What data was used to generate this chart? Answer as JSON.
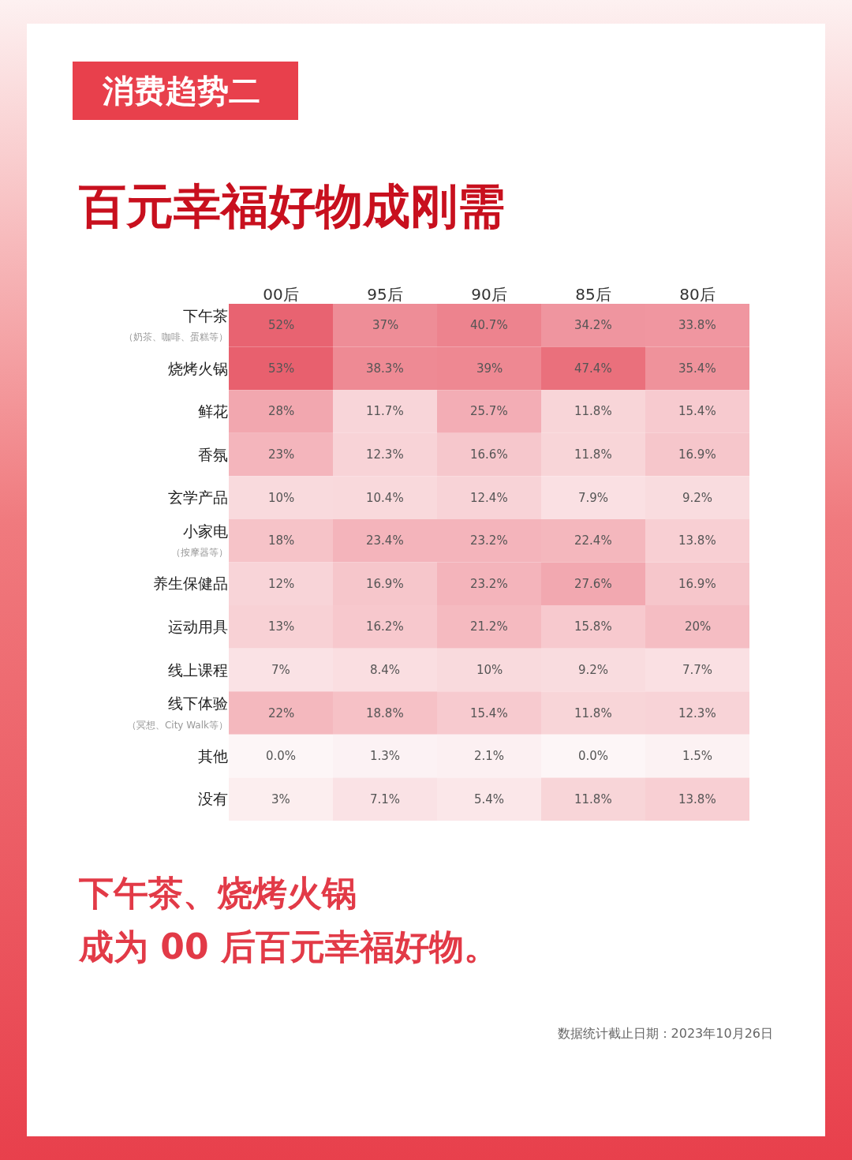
{
  "chart_data": {
    "type": "heatmap",
    "subtitle": "消费趋势二",
    "title": "百元幸福好物成刚需",
    "categories": [
      "00后",
      "95后",
      "90后",
      "85后",
      "80后"
    ],
    "y_categories": [
      "下午茶（奶茶、咖啡、蛋糕等）",
      "烧烤火锅",
      "鲜花",
      "香氛",
      "玄学产品",
      "小家电（按摩器等）",
      "养生保健品",
      "运动用具",
      "线上课程",
      "线下体验（冥想、City Walk等）",
      "其他",
      "没有"
    ],
    "cells": [
      [
        52,
        37,
        40.7,
        34.2,
        33.8
      ],
      [
        53,
        38.3,
        39,
        47.4,
        35.4
      ],
      [
        28,
        11.7,
        25.7,
        11.8,
        15.4
      ],
      [
        23,
        12.3,
        16.6,
        11.8,
        16.9
      ],
      [
        10,
        10.4,
        12.4,
        7.9,
        9.2
      ],
      [
        18,
        23.4,
        23.2,
        22.4,
        13.8
      ],
      [
        12,
        16.9,
        23.2,
        27.6,
        16.9
      ],
      [
        13,
        16.2,
        21.2,
        15.8,
        20
      ],
      [
        7,
        8.4,
        10,
        9.2,
        7.7
      ],
      [
        22,
        18.8,
        15.4,
        11.8,
        12.3
      ],
      [
        0,
        1.3,
        2.1,
        0,
        1.5
      ],
      [
        3,
        7.1,
        5.4,
        11.8,
        13.8
      ]
    ],
    "cell_labels": [
      [
        "52%",
        "37%",
        "40.7%",
        "34.2%",
        "33.8%"
      ],
      [
        "53%",
        "38.3%",
        "39%",
        "47.4%",
        "35.4%"
      ],
      [
        "28%",
        "11.7%",
        "25.7%",
        "11.8%",
        "15.4%"
      ],
      [
        "23%",
        "12.3%",
        "16.6%",
        "11.8%",
        "16.9%"
      ],
      [
        "10%",
        "10.4%",
        "12.4%",
        "7.9%",
        "9.2%"
      ],
      [
        "18%",
        "23.4%",
        "23.2%",
        "22.4%",
        "13.8%"
      ],
      [
        "12%",
        "16.9%",
        "23.2%",
        "27.6%",
        "16.9%"
      ],
      [
        "13%",
        "16.2%",
        "21.2%",
        "15.8%",
        "20%"
      ],
      [
        "7%",
        "8.4%",
        "10%",
        "9.2%",
        "7.7%"
      ],
      [
        "22%",
        "18.8%",
        "15.4%",
        "11.8%",
        "12.3%"
      ],
      [
        "0.0%",
        "1.3%",
        "2.1%",
        "0.0%",
        "1.5%"
      ],
      [
        "3%",
        "7.1%",
        "5.4%",
        "11.8%",
        "13.8%"
      ]
    ],
    "annotations": [
      "下午茶、烧烤火锅",
      "成为 00 后百元幸福好物。",
      "数据统计截止日期：2023年10月26日"
    ]
  }
}
